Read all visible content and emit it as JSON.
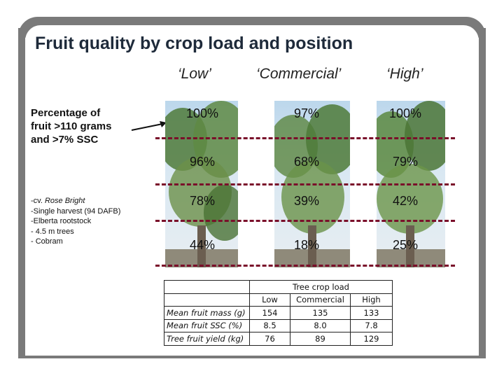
{
  "title": "Fruit quality by crop load and position",
  "columns": [
    "‘Low’",
    "‘Commercial’",
    "‘High’"
  ],
  "annotation": [
    "Percentage of",
    "fruit >110 grams",
    "and >7% SSC"
  ],
  "notes": [
    "-cv. ",
    "Rose Bright",
    "-Single harvest (94 DAFB)",
    "-Elberta rootstock",
    "- 4.5 m trees",
    "- Cobram"
  ],
  "percentages": [
    [
      "100%",
      "97%",
      "100%"
    ],
    [
      "96%",
      "68%",
      "79%"
    ],
    [
      "78%",
      "39%",
      "42%"
    ],
    [
      "44%",
      "18%",
      "25%"
    ]
  ],
  "table": {
    "group_header": "Tree crop load",
    "headers": [
      "Low",
      "Commercial",
      "High"
    ],
    "rows": [
      {
        "label": "Mean fruit mass (g)",
        "values": [
          "154",
          "135",
          "133"
        ]
      },
      {
        "label": "Mean fruit SSC (%)",
        "values": [
          "8.5",
          "8.0",
          "7.8"
        ]
      },
      {
        "label": "Tree fruit yield (kg)",
        "values": [
          "76",
          "89",
          "129"
        ]
      }
    ]
  },
  "colors": {
    "frame": "#7a7a7a",
    "dash": "#7a0f2a",
    "title": "#1e2a3a",
    "arrow": "#111111"
  }
}
